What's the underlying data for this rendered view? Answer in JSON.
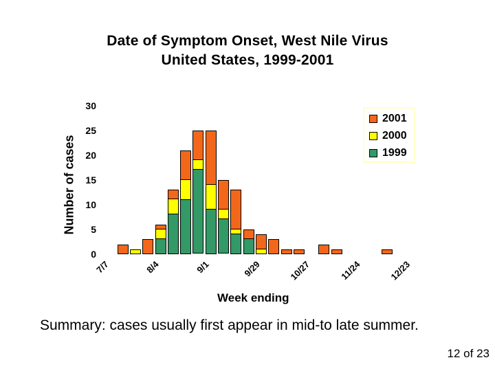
{
  "slide": {
    "title_line1": "Date of Symptom Onset, West Nile Virus",
    "title_line2": "United States, 1999-2001",
    "summary": "Summary: cases usually first appear in mid-to late summer.",
    "page_indicator": "12 of 23"
  },
  "chart_data": {
    "type": "bar",
    "stacked": true,
    "xlabel": "Week ending",
    "ylabel": "Number of cases",
    "ylim": [
      0,
      30
    ],
    "yticks": [
      0,
      5,
      10,
      15,
      20,
      25,
      30
    ],
    "grid": false,
    "categories": [
      "7/7",
      "7/14",
      "7/21",
      "7/28",
      "8/4",
      "8/11",
      "8/18",
      "8/25",
      "9/1",
      "9/8",
      "9/15",
      "9/22",
      "9/29",
      "10/6",
      "10/13",
      "10/20",
      "10/27",
      "11/3",
      "11/10",
      "11/17",
      "11/24",
      "12/1",
      "12/8",
      "12/15",
      "12/23"
    ],
    "xticks_shown": [
      {
        "slot": 0,
        "label": "7/7"
      },
      {
        "slot": 4,
        "label": "8/4"
      },
      {
        "slot": 8,
        "label": "9/1"
      },
      {
        "slot": 12,
        "label": "9/29"
      },
      {
        "slot": 16,
        "label": "10/27"
      },
      {
        "slot": 20,
        "label": "11/24"
      },
      {
        "slot": 24,
        "label": "12/23"
      }
    ],
    "series": [
      {
        "name": "1999",
        "color": "#339966",
        "values": [
          0,
          0,
          0,
          0,
          0,
          3,
          8,
          11,
          17,
          9,
          7,
          4,
          3,
          0,
          0,
          0,
          0,
          0,
          0,
          0,
          0,
          0,
          0,
          0,
          0
        ]
      },
      {
        "name": "2000",
        "color": "#ffff00",
        "values": [
          0,
          0,
          0,
          1,
          0,
          2,
          3,
          4,
          2,
          5,
          2,
          1,
          0,
          1,
          0,
          0,
          0,
          0,
          0,
          0,
          0,
          0,
          0,
          0,
          0
        ]
      },
      {
        "name": "2001",
        "color": "#f3671b",
        "values": [
          0,
          0,
          2,
          0,
          3,
          1,
          2,
          6,
          6,
          11,
          6,
          8,
          2,
          3,
          3,
          1,
          1,
          0,
          2,
          1,
          0,
          0,
          0,
          1,
          0
        ]
      }
    ],
    "legend": {
      "position": "upper-right",
      "border_color": "#ffffc9",
      "entries": [
        {
          "label": "2001",
          "color": "#f3671b"
        },
        {
          "label": "2000",
          "color": "#ffff00"
        },
        {
          "label": "1999",
          "color": "#339966"
        }
      ]
    }
  }
}
